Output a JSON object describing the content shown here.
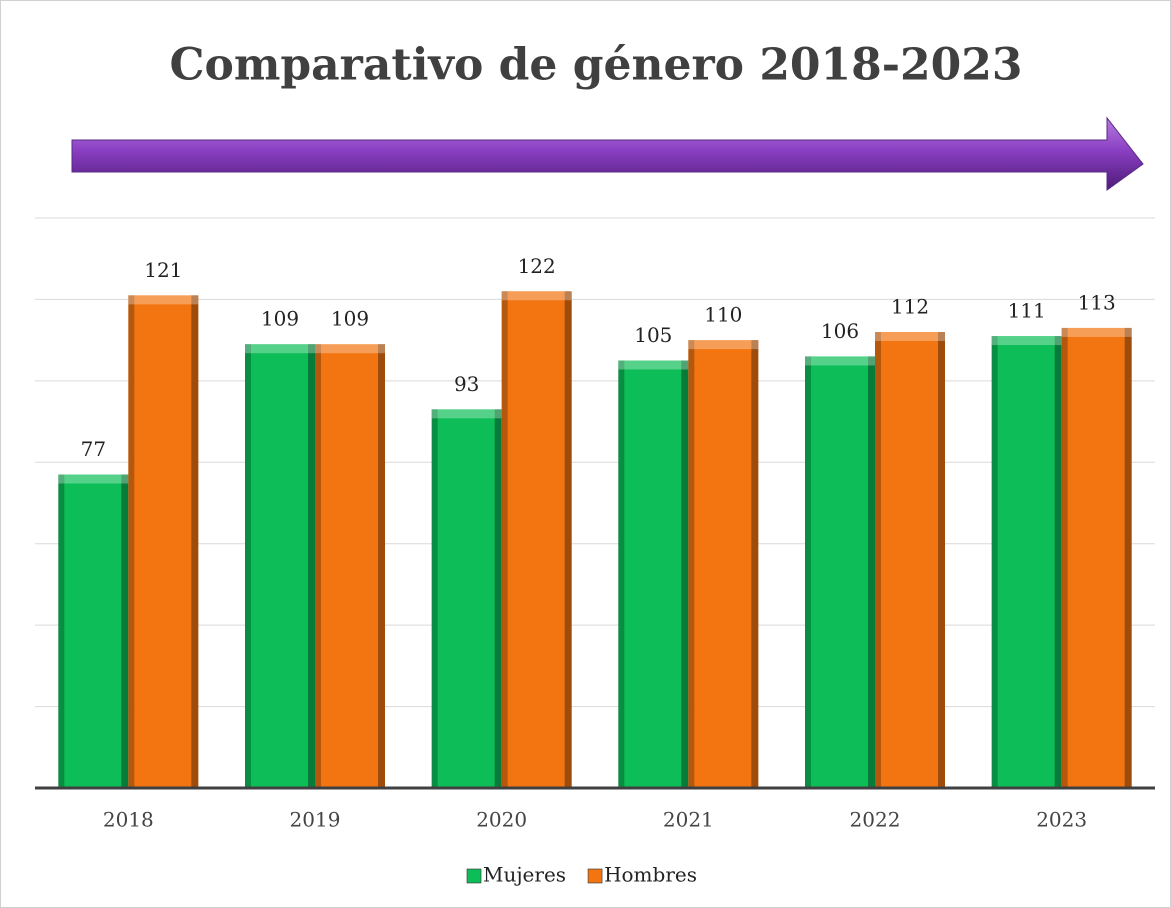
{
  "chart_data": {
    "type": "bar",
    "title": "Comparativo de género 2018-2023",
    "categories": [
      "2018",
      "2019",
      "2020",
      "2021",
      "2022",
      "2023"
    ],
    "series": [
      {
        "name": "Mujeres",
        "color": "#0cbd58",
        "values": [
          77,
          109,
          93,
          105,
          106,
          111
        ]
      },
      {
        "name": "Hombres",
        "color": "#f27511",
        "values": [
          121,
          109,
          122,
          110,
          112,
          113
        ]
      }
    ],
    "ylim": [
      0,
      140
    ],
    "yticks": [
      0,
      20,
      40,
      60,
      80,
      100,
      120,
      140
    ],
    "grid": true,
    "legend": "bottom"
  }
}
